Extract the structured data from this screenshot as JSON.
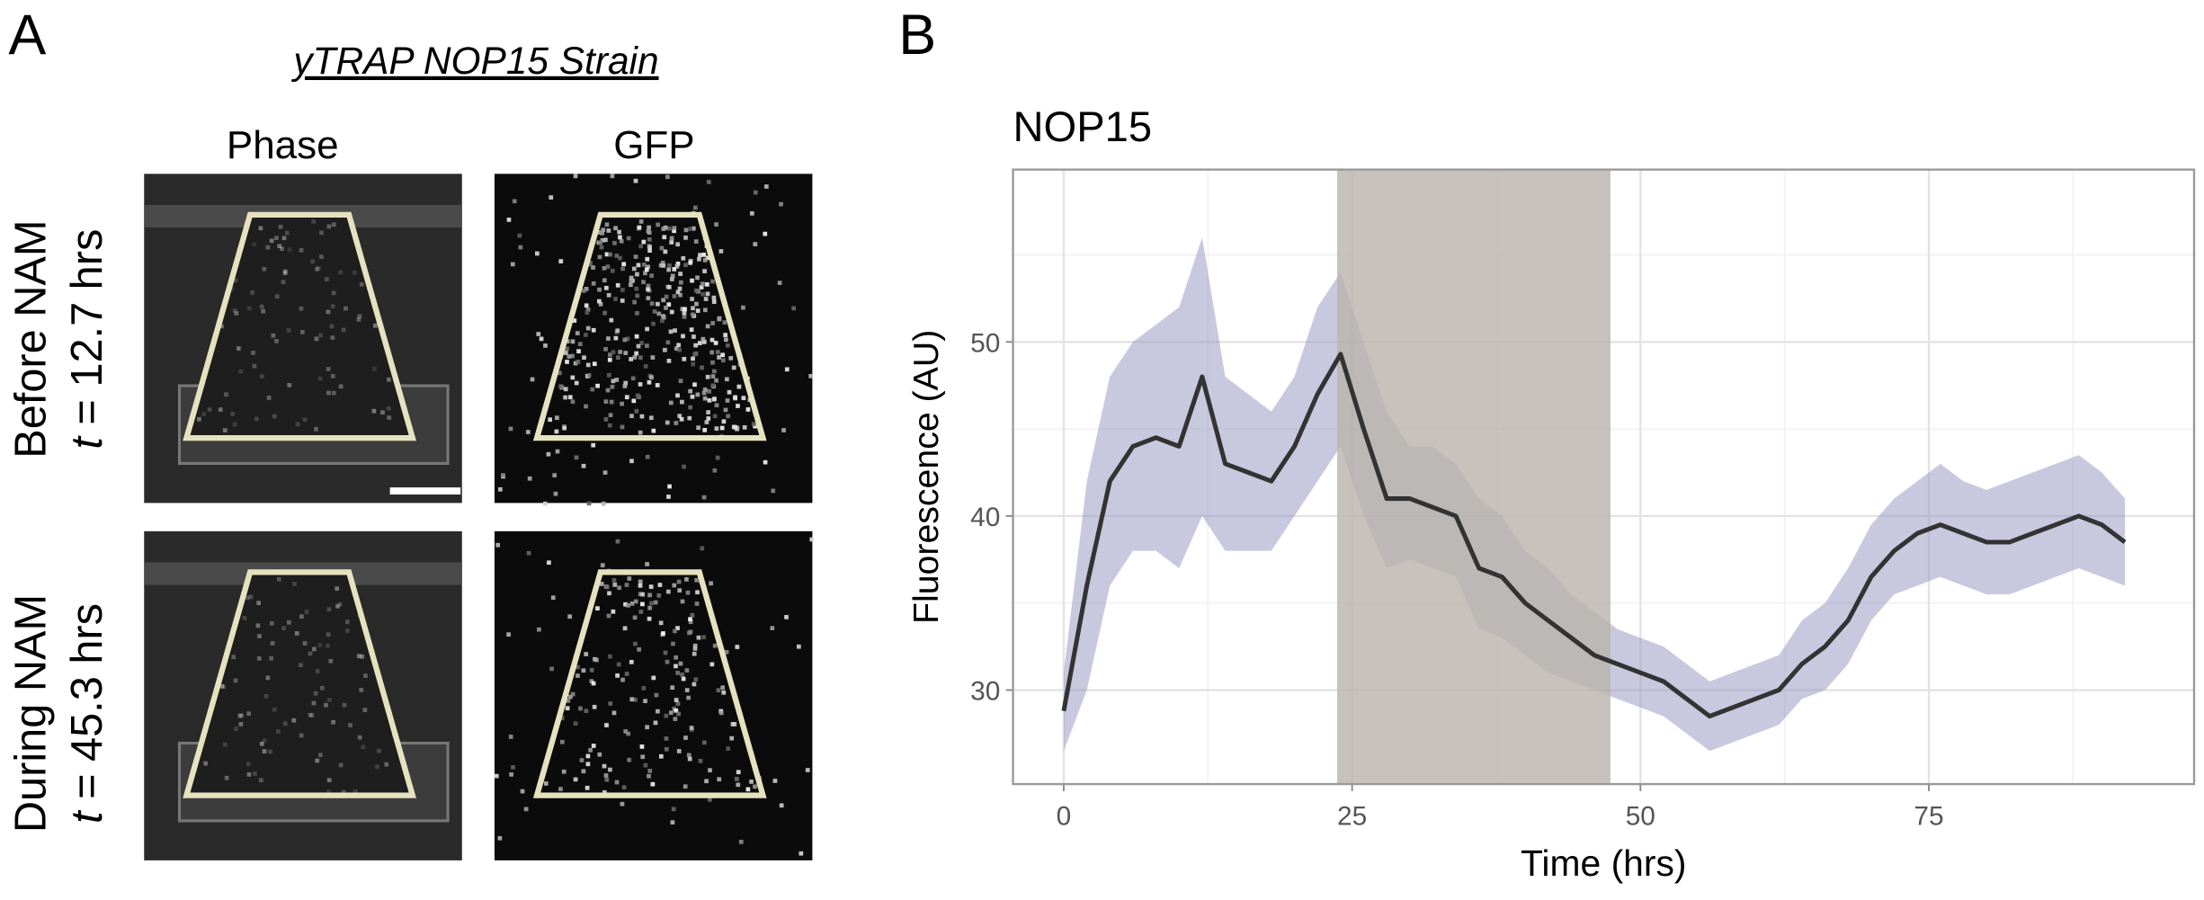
{
  "panel_labels": [
    "A",
    "B"
  ],
  "panel_a": {
    "title": "yTRAP NOP15 Strain",
    "columns": [
      "Phase",
      "GFP"
    ],
    "rows": [
      {
        "condition": "Before NAM",
        "time_var": "t",
        "time": " = 12.7 hrs"
      },
      {
        "condition": "During NAM",
        "time_var": "t",
        "time": " = 45.3 hrs"
      }
    ]
  },
  "chart_data": {
    "type": "line",
    "title": "NOP15",
    "x_label": "Time (hrs)",
    "y_label": "Fluorescence (AU)",
    "x": [
      0,
      2,
      4,
      6,
      8,
      10,
      12,
      14,
      16,
      18,
      20,
      22,
      24,
      26,
      28,
      30,
      32,
      34,
      36,
      38,
      40,
      42,
      44,
      46,
      48,
      50,
      52,
      54,
      56,
      58,
      60,
      62,
      64,
      66,
      68,
      70,
      72,
      74,
      76,
      78,
      80,
      82,
      84,
      86,
      88,
      90,
      92
    ],
    "series": [
      {
        "color": "#333333",
        "values": [
          28.8,
          36,
          42,
          44,
          44.5,
          44,
          48,
          43,
          42.5,
          42,
          44,
          47,
          49.3,
          45,
          41,
          41,
          40.5,
          40,
          37,
          36.5,
          35,
          34,
          33,
          32,
          31.5,
          31,
          30.5,
          29.5,
          28.5,
          29,
          29.5,
          30,
          31.5,
          32.5,
          34,
          36.5,
          38,
          39,
          39.5,
          39,
          38.5,
          38.5,
          39,
          39.5,
          40,
          39.5,
          38.5
        ]
      }
    ],
    "band": {
      "color": "#9a9ac4",
      "lower": [
        26.5,
        30,
        36,
        38,
        38,
        37,
        40,
        38,
        38,
        38,
        40,
        42,
        44,
        40,
        37,
        37.5,
        37,
        36.5,
        33.5,
        33,
        32,
        31,
        30.5,
        30,
        29.5,
        29,
        28.5,
        27.5,
        26.5,
        27,
        27.5,
        28,
        29.5,
        30,
        31.5,
        34,
        35.5,
        36,
        36.5,
        36,
        35.5,
        35.5,
        36,
        36.5,
        37,
        36.5,
        36
      ],
      "upper": [
        31,
        42,
        48,
        50,
        51,
        52,
        56,
        48,
        47,
        46,
        48,
        52,
        54,
        50,
        46,
        44,
        44,
        43,
        41,
        40,
        38,
        37,
        35.5,
        34.5,
        33.5,
        33,
        32.5,
        31.5,
        30.5,
        31,
        31.5,
        32,
        34,
        35,
        37,
        39.5,
        41,
        42,
        43,
        42,
        41.5,
        42,
        42.5,
        43,
        43.5,
        42.5,
        41
      ]
    },
    "shaded_x": [
      23.7,
      47.4
    ],
    "shaded_color": "#b9b4ab",
    "xlim": [
      -4.4,
      98
    ],
    "ylim": [
      24.6,
      59.9
    ],
    "xticks": [
      0,
      25,
      50,
      75
    ],
    "yticks": [
      30,
      40,
      50
    ],
    "minor_xticks": [
      12.5,
      37.5,
      62.5,
      87.5
    ],
    "minor_yticks": [
      35,
      45,
      55
    ],
    "grid": true
  }
}
